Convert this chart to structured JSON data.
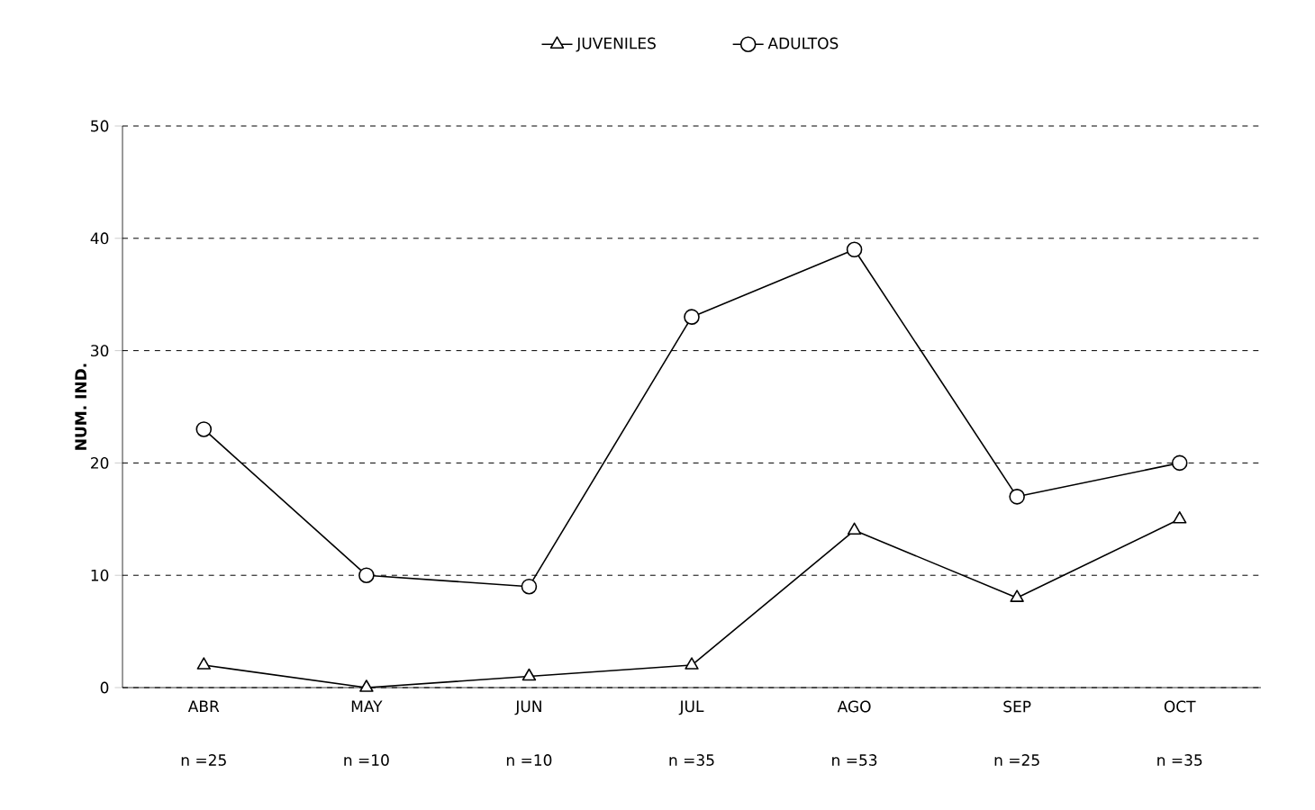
{
  "chart_data": {
    "type": "line",
    "ylabel": "NUM. IND.",
    "categories": [
      "ABR",
      "MAY",
      "JUN",
      "JUL",
      "AGO",
      "SEP",
      "OCT"
    ],
    "series": [
      {
        "name": "JUVENILES",
        "color": "#000000",
        "marker": "triangle",
        "values": [
          2,
          0,
          1,
          2,
          14,
          8,
          15
        ]
      },
      {
        "name": "ADULTOS",
        "color": "#000000",
        "marker": "circle",
        "values": [
          23,
          10,
          9,
          33,
          39,
          17,
          20
        ]
      }
    ],
    "ylim": [
      0,
      50
    ],
    "yticks": [
      0,
      10,
      20,
      30,
      40,
      50
    ],
    "grid": "y",
    "legend": "top",
    "line_style": "solid",
    "annotations": [
      "n =25",
      "n =10",
      "n =10",
      "n =35",
      "n =53",
      "n =25",
      "n =35"
    ]
  }
}
